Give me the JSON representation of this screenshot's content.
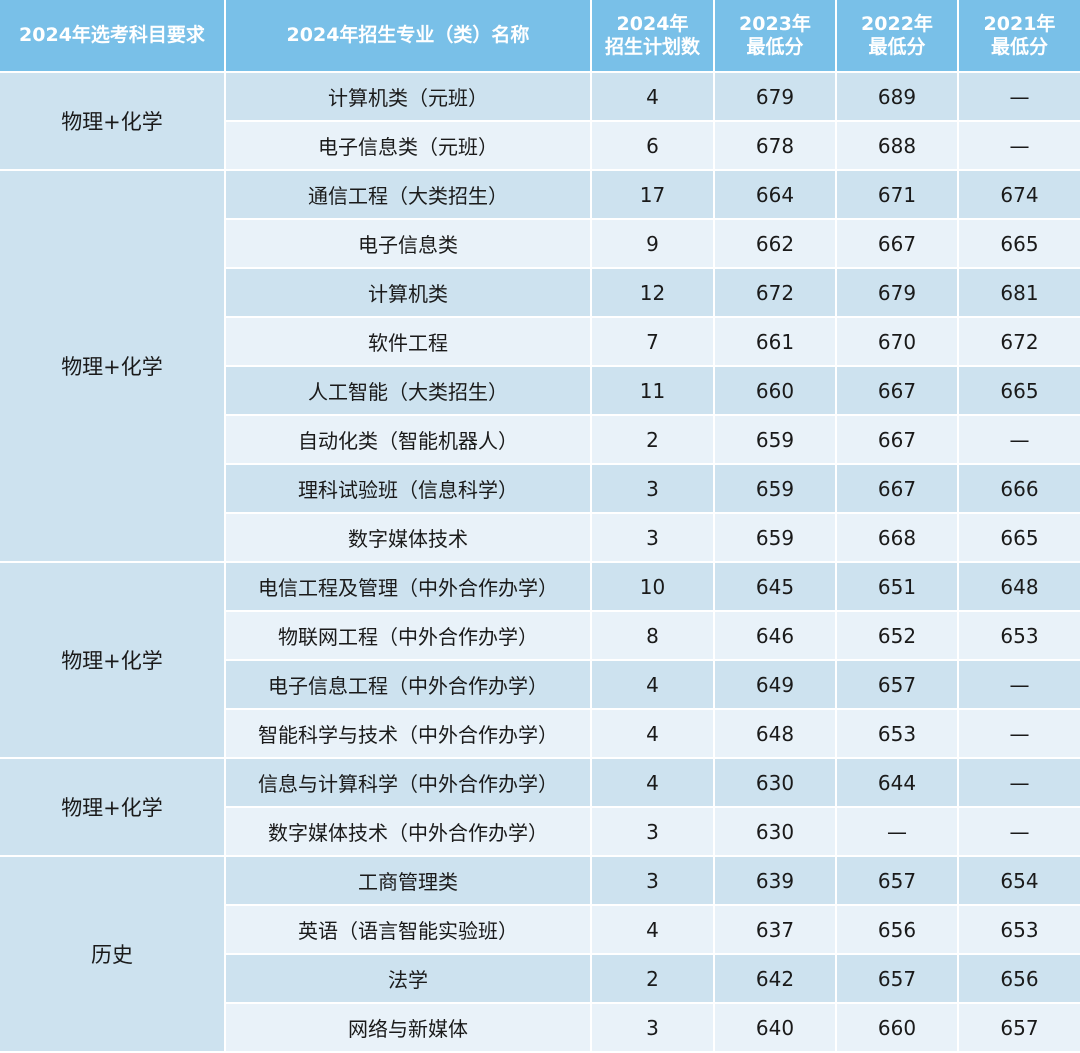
{
  "header": {
    "col0": "2024年选考科目要求",
    "col1": "2024年招生专业（类）名称",
    "col2_l1": "2024年",
    "col2_l2": "招生计划数",
    "col3_l1": "2023年",
    "col3_l2": "最低分",
    "col4_l1": "2022年",
    "col4_l2": "最低分",
    "col5_l1": "2021年",
    "col5_l2": "最低分"
  },
  "groups": [
    {
      "subject": "物理+化学",
      "rows": [
        {
          "major": "计算机类（元班）",
          "plan": "4",
          "s2023": "679",
          "s2022": "689",
          "s2021": "—"
        },
        {
          "major": "电子信息类（元班）",
          "plan": "6",
          "s2023": "678",
          "s2022": "688",
          "s2021": "—"
        }
      ]
    },
    {
      "subject": "物理+化学",
      "rows": [
        {
          "major": "通信工程（大类招生）",
          "plan": "17",
          "s2023": "664",
          "s2022": "671",
          "s2021": "674"
        },
        {
          "major": "电子信息类",
          "plan": "9",
          "s2023": "662",
          "s2022": "667",
          "s2021": "665"
        },
        {
          "major": "计算机类",
          "plan": "12",
          "s2023": "672",
          "s2022": "679",
          "s2021": "681"
        },
        {
          "major": "软件工程",
          "plan": "7",
          "s2023": "661",
          "s2022": "670",
          "s2021": "672"
        },
        {
          "major": "人工智能（大类招生）",
          "plan": "11",
          "s2023": "660",
          "s2022": "667",
          "s2021": "665"
        },
        {
          "major": "自动化类（智能机器人）",
          "plan": "2",
          "s2023": "659",
          "s2022": "667",
          "s2021": "—"
        },
        {
          "major": "理科试验班（信息科学）",
          "plan": "3",
          "s2023": "659",
          "s2022": "667",
          "s2021": "666"
        },
        {
          "major": "数字媒体技术",
          "plan": "3",
          "s2023": "659",
          "s2022": "668",
          "s2021": "665"
        }
      ]
    },
    {
      "subject": "物理+化学",
      "rows": [
        {
          "major": "电信工程及管理（中外合作办学）",
          "plan": "10",
          "s2023": "645",
          "s2022": "651",
          "s2021": "648"
        },
        {
          "major": "物联网工程（中外合作办学）",
          "plan": "8",
          "s2023": "646",
          "s2022": "652",
          "s2021": "653"
        },
        {
          "major": "电子信息工程（中外合作办学）",
          "plan": "4",
          "s2023": "649",
          "s2022": "657",
          "s2021": "—"
        },
        {
          "major": "智能科学与技术（中外合作办学）",
          "plan": "4",
          "s2023": "648",
          "s2022": "653",
          "s2021": "—"
        }
      ]
    },
    {
      "subject": "物理+化学",
      "rows": [
        {
          "major": "信息与计算科学（中外合作办学）",
          "plan": "4",
          "s2023": "630",
          "s2022": "644",
          "s2021": "—"
        },
        {
          "major": "数字媒体技术（中外合作办学）",
          "plan": "3",
          "s2023": "630",
          "s2022": "—",
          "s2021": "—"
        }
      ]
    },
    {
      "subject": "历史",
      "rows": [
        {
          "major": "工商管理类",
          "plan": "3",
          "s2023": "639",
          "s2022": "657",
          "s2021": "654"
        },
        {
          "major": "英语（语言智能实验班）",
          "plan": "4",
          "s2023": "637",
          "s2022": "656",
          "s2021": "653"
        },
        {
          "major": "法学",
          "plan": "2",
          "s2023": "642",
          "s2022": "657",
          "s2021": "656"
        },
        {
          "major": "网络与新媒体",
          "plan": "3",
          "s2023": "640",
          "s2022": "660",
          "s2021": "657"
        }
      ]
    }
  ],
  "colors": {
    "header_bg": "#79c0e8",
    "row_dark": "#cde2ef",
    "row_light": "#e9f2f9"
  }
}
